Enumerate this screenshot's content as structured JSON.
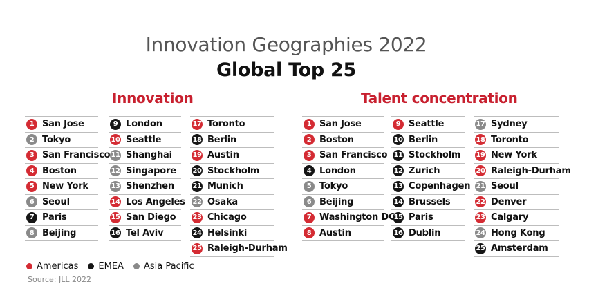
{
  "colors": {
    "americas": "#d42b33",
    "emea": "#151515",
    "asia_pacific": "#8a8a8a",
    "accent": "#c8202f"
  },
  "header": {
    "subtitle": "Innovation Geographies 2022",
    "title": "Global Top 25"
  },
  "sections": {
    "innovation": "Innovation",
    "talent": "Talent concentration"
  },
  "innovation": [
    [
      {
        "rank": "1",
        "name": "San Jose",
        "region": "americas"
      },
      {
        "rank": "2",
        "name": "Tokyo",
        "region": "asia_pacific"
      },
      {
        "rank": "3",
        "name": "San Francisco",
        "region": "americas"
      },
      {
        "rank": "4",
        "name": "Boston",
        "region": "americas"
      },
      {
        "rank": "5",
        "name": "New York",
        "region": "americas"
      },
      {
        "rank": "6",
        "name": "Seoul",
        "region": "asia_pacific"
      },
      {
        "rank": "7",
        "name": "Paris",
        "region": "emea"
      },
      {
        "rank": "8",
        "name": "Beijing",
        "region": "asia_pacific"
      }
    ],
    [
      {
        "rank": "9",
        "name": "London",
        "region": "emea"
      },
      {
        "rank": "10",
        "name": "Seattle",
        "region": "americas"
      },
      {
        "rank": "11",
        "name": "Shanghai",
        "region": "asia_pacific"
      },
      {
        "rank": "12",
        "name": "Singapore",
        "region": "asia_pacific"
      },
      {
        "rank": "13",
        "name": "Shenzhen",
        "region": "asia_pacific"
      },
      {
        "rank": "14",
        "name": "Los Angeles",
        "region": "americas"
      },
      {
        "rank": "15",
        "name": "San Diego",
        "region": "americas"
      },
      {
        "rank": "16",
        "name": "Tel Aviv",
        "region": "emea"
      }
    ],
    [
      {
        "rank": "17",
        "name": "Toronto",
        "region": "americas"
      },
      {
        "rank": "18",
        "name": "Berlin",
        "region": "emea"
      },
      {
        "rank": "19",
        "name": "Austin",
        "region": "americas"
      },
      {
        "rank": "20",
        "name": "Stockholm",
        "region": "emea"
      },
      {
        "rank": "21",
        "name": "Munich",
        "region": "emea"
      },
      {
        "rank": "22",
        "name": "Osaka",
        "region": "asia_pacific"
      },
      {
        "rank": "23",
        "name": "Chicago",
        "region": "americas"
      },
      {
        "rank": "24",
        "name": "Helsinki",
        "region": "emea"
      },
      {
        "rank": "25",
        "name": "Raleigh-Durham",
        "region": "americas"
      }
    ]
  ],
  "talent": [
    [
      {
        "rank": "1",
        "name": "San Jose",
        "region": "americas"
      },
      {
        "rank": "2",
        "name": "Boston",
        "region": "americas"
      },
      {
        "rank": "3",
        "name": "San Francisco",
        "region": "americas"
      },
      {
        "rank": "4",
        "name": "London",
        "region": "emea"
      },
      {
        "rank": "5",
        "name": "Tokyo",
        "region": "asia_pacific"
      },
      {
        "rank": "6",
        "name": "Beijing",
        "region": "asia_pacific"
      },
      {
        "rank": "7",
        "name": "Washington DC",
        "region": "americas"
      },
      {
        "rank": "8",
        "name": "Austin",
        "region": "americas"
      }
    ],
    [
      {
        "rank": "9",
        "name": "Seattle",
        "region": "americas"
      },
      {
        "rank": "10",
        "name": "Berlin",
        "region": "emea"
      },
      {
        "rank": "11",
        "name": "Stockholm",
        "region": "emea"
      },
      {
        "rank": "12",
        "name": "Zurich",
        "region": "emea"
      },
      {
        "rank": "13",
        "name": "Copenhagen",
        "region": "emea"
      },
      {
        "rank": "14",
        "name": "Brussels",
        "region": "emea"
      },
      {
        "rank": "15",
        "name": "Paris",
        "region": "emea"
      },
      {
        "rank": "16",
        "name": "Dublin",
        "region": "emea"
      }
    ],
    [
      {
        "rank": "17",
        "name": "Sydney",
        "region": "asia_pacific"
      },
      {
        "rank": "18",
        "name": "Toronto",
        "region": "americas"
      },
      {
        "rank": "19",
        "name": "New York",
        "region": "americas"
      },
      {
        "rank": "20",
        "name": "Raleigh-Durham",
        "region": "americas"
      },
      {
        "rank": "21",
        "name": "Seoul",
        "region": "asia_pacific"
      },
      {
        "rank": "22",
        "name": "Denver",
        "region": "americas"
      },
      {
        "rank": "23",
        "name": "Calgary",
        "region": "americas"
      },
      {
        "rank": "24",
        "name": "Hong Kong",
        "region": "asia_pacific"
      },
      {
        "rank": "25",
        "name": "Amsterdam",
        "region": "emea"
      }
    ]
  ],
  "legend": [
    {
      "label": "Americas",
      "region": "americas"
    },
    {
      "label": "EMEA",
      "region": "emea"
    },
    {
      "label": "Asia Pacific",
      "region": "asia_pacific"
    }
  ],
  "source": "Source: JLL 2022"
}
